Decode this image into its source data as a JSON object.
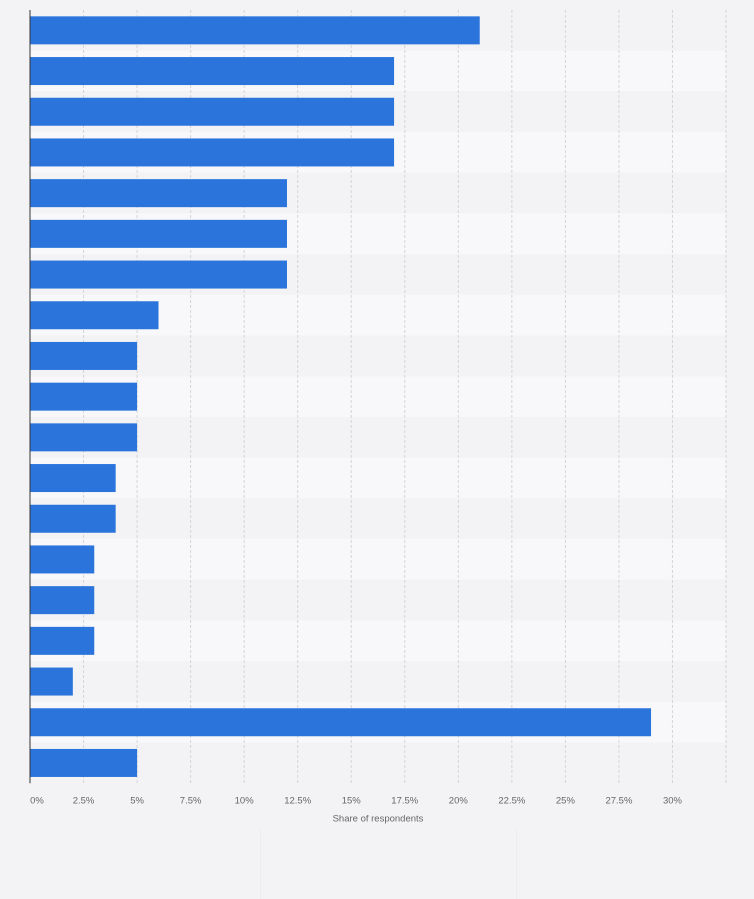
{
  "chart_data": {
    "type": "bar",
    "orientation": "horizontal",
    "categories": [
      "",
      "",
      "",
      "",
      "",
      "",
      "",
      "",
      "",
      "",
      "",
      "",
      "",
      "",
      "",
      "",
      "",
      "",
      ""
    ],
    "series": [
      {
        "values": [
          21,
          17,
          17,
          17,
          12,
          12,
          12,
          6,
          5,
          5,
          5,
          4,
          4,
          3,
          3,
          3,
          2,
          29,
          5
        ]
      }
    ],
    "xlabel": "Share of respondents",
    "ylabel": "",
    "xlim": [
      0,
      32.5
    ],
    "ticks": [
      {
        "value": 0,
        "label": "0%"
      },
      {
        "value": 2.5,
        "label": "2.5%"
      },
      {
        "value": 5,
        "label": "5%"
      },
      {
        "value": 7.5,
        "label": "7.5%"
      },
      {
        "value": 10,
        "label": "10%"
      },
      {
        "value": 12.5,
        "label": "12.5%"
      },
      {
        "value": 15,
        "label": "15%"
      },
      {
        "value": 17.5,
        "label": "17.5%"
      },
      {
        "value": 20,
        "label": "20%"
      },
      {
        "value": 22.5,
        "label": "22.5%"
      },
      {
        "value": 25,
        "label": "25%"
      },
      {
        "value": 27.5,
        "label": "27.5%"
      },
      {
        "value": 30,
        "label": "30%"
      }
    ],
    "grid": true,
    "legend": "none",
    "colors": {
      "bar": "#2a74dc",
      "row_band_a": "#f3f3f5",
      "row_band_b": "#f8f8fa",
      "grid": "#d5d5d9",
      "axis": "#333333",
      "tick_text": "#666666"
    }
  }
}
